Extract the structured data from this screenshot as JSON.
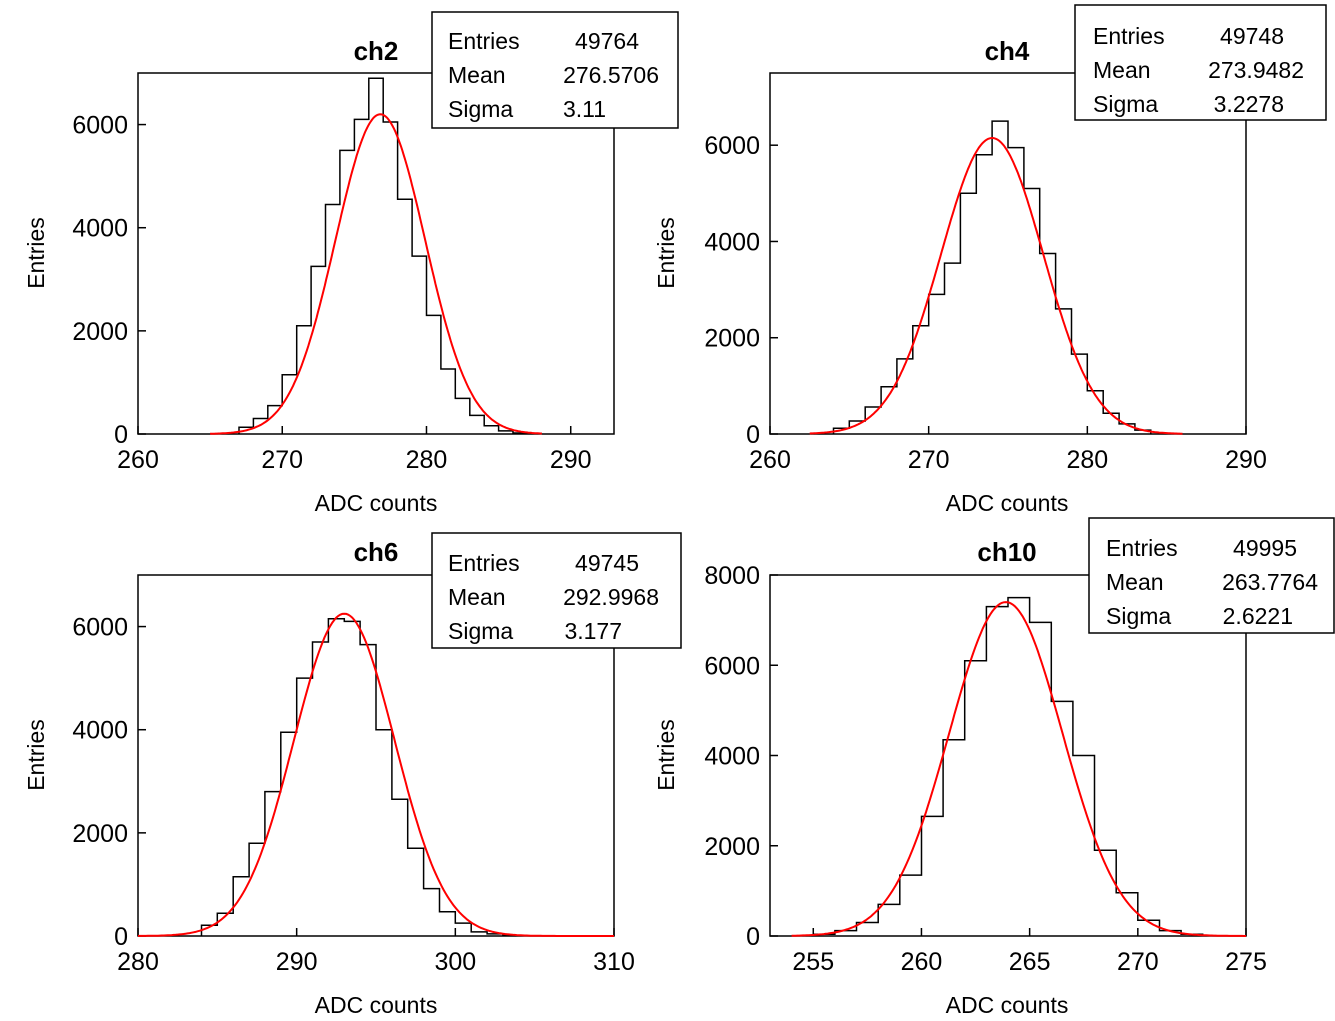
{
  "chart_data": [
    {
      "type": "bar",
      "title": "ch2",
      "xlabel": "ADC counts",
      "ylabel": "Entries",
      "xlim": [
        260,
        293
      ],
      "ylim": [
        0,
        7000
      ],
      "xticks": [
        "260",
        "270",
        "280",
        "290"
      ],
      "yticks": [
        "0",
        "2000",
        "4000",
        "6000"
      ],
      "bin_edges": [
        267,
        268,
        269,
        270,
        271,
        272,
        273,
        274,
        275,
        276,
        277,
        278,
        279,
        280,
        281,
        282,
        283,
        284,
        285,
        286,
        287
      ],
      "values": [
        130,
        300,
        550,
        1150,
        2100,
        3250,
        4450,
        5500,
        6100,
        6900,
        6050,
        4550,
        3450,
        2300,
        1260,
        690,
        360,
        160,
        60,
        20
      ],
      "series": [
        {
          "name": "histogram",
          "color": "#000000"
        },
        {
          "name": "gaussian fit",
          "color": "#ff0000"
        }
      ],
      "fit": {
        "amplitude": 6200,
        "mean": 276.8,
        "sigma": 3.11,
        "range": [
          265,
          288
        ]
      },
      "stats": [
        {
          "label": "Entries",
          "value": "49764"
        },
        {
          "label": "Mean",
          "value": "276.5706"
        },
        {
          "label": "Sigma",
          "value": "3.11"
        }
      ]
    },
    {
      "type": "bar",
      "title": "ch4",
      "xlabel": "ADC counts",
      "ylabel": "Entries",
      "xlim": [
        260,
        290
      ],
      "ylim": [
        0,
        7500
      ],
      "xticks": [
        "260",
        "270",
        "280",
        "290"
      ],
      "yticks": [
        "0",
        "2000",
        "4000",
        "6000"
      ],
      "bin_edges": [
        264,
        265,
        266,
        267,
        268,
        269,
        270,
        271,
        272,
        273,
        274,
        275,
        276,
        277,
        278,
        279,
        280,
        281,
        282,
        283,
        284
      ],
      "values": [
        120,
        270,
        560,
        980,
        1560,
        2250,
        2900,
        3550,
        5000,
        5800,
        6500,
        5950,
        5100,
        3750,
        2600,
        1660,
        900,
        430,
        210,
        80
      ],
      "series": [
        {
          "name": "histogram",
          "color": "#000000"
        },
        {
          "name": "gaussian fit",
          "color": "#ff0000"
        }
      ],
      "fit": {
        "amplitude": 6150,
        "mean": 274.0,
        "sigma": 3.2278,
        "range": [
          262.5,
          286
        ]
      },
      "stats": [
        {
          "label": "Entries",
          "value": "49748"
        },
        {
          "label": "Mean",
          "value": "273.9482"
        },
        {
          "label": "Sigma",
          "value": "3.2278"
        }
      ]
    },
    {
      "type": "bar",
      "title": "ch6",
      "xlabel": "ADC counts",
      "ylabel": "Entries",
      "xlim": [
        280,
        310
      ],
      "ylim": [
        0,
        7000
      ],
      "xticks": [
        "280",
        "290",
        "300",
        "310"
      ],
      "yticks": [
        "0",
        "2000",
        "4000",
        "6000"
      ],
      "bin_edges": [
        284,
        285,
        286,
        287,
        288,
        289,
        290,
        291,
        292,
        293,
        294,
        295,
        296,
        297,
        298,
        299,
        300,
        301,
        302,
        303,
        304
      ],
      "values": [
        210,
        440,
        1150,
        1800,
        2800,
        3950,
        5000,
        5700,
        6150,
        6100,
        5650,
        4000,
        2650,
        1700,
        920,
        470,
        250,
        80,
        40,
        15
      ],
      "series": [
        {
          "name": "histogram",
          "color": "#000000"
        },
        {
          "name": "gaussian fit",
          "color": "#ff0000"
        }
      ],
      "fit": {
        "amplitude": 6250,
        "mean": 293.0,
        "sigma": 3.177,
        "range": [
          280,
          310
        ]
      },
      "stats": [
        {
          "label": "Entries",
          "value": "49745"
        },
        {
          "label": "Mean",
          "value": "292.9968"
        },
        {
          "label": "Sigma",
          "value": "3.177"
        }
      ]
    },
    {
      "type": "bar",
      "title": "ch10",
      "xlabel": "ADC counts",
      "ylabel": "Entries",
      "xlim": [
        253,
        275
      ],
      "ylim": [
        0,
        8000
      ],
      "xticks": [
        "255",
        "260",
        "265",
        "270",
        "275"
      ],
      "yticks": [
        "0",
        "2000",
        "4000",
        "6000",
        "8000"
      ],
      "bin_edges": [
        255,
        256,
        257,
        258,
        259,
        260,
        261,
        262,
        263,
        264,
        265,
        266,
        267,
        268,
        269,
        270,
        271,
        272,
        273
      ],
      "values": [
        40,
        120,
        300,
        700,
        1350,
        2650,
        4350,
        6100,
        7300,
        7500,
        6950,
        5200,
        4000,
        1900,
        960,
        350,
        120,
        40
      ],
      "series": [
        {
          "name": "histogram",
          "color": "#000000"
        },
        {
          "name": "gaussian fit",
          "color": "#ff0000"
        }
      ],
      "fit": {
        "amplitude": 7400,
        "mean": 263.9,
        "sigma": 2.6221,
        "range": [
          254,
          275
        ]
      },
      "stats": [
        {
          "label": "Entries",
          "value": "49995"
        },
        {
          "label": "Mean",
          "value": "263.7764"
        },
        {
          "label": "Sigma",
          "value": "2.6221"
        }
      ]
    }
  ]
}
